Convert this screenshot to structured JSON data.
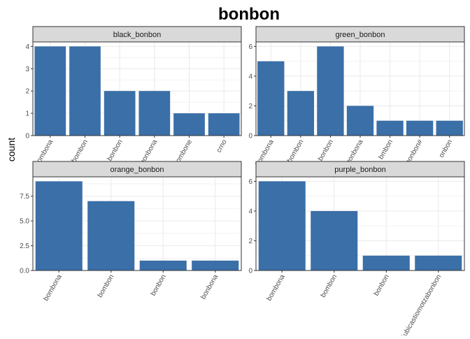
{
  "title": "bonbon",
  "ylabel": "count",
  "colors": {
    "bar": "#3A6FA8",
    "strip": "#D9D9D9",
    "grid": "#EBEBEB",
    "axis": "#333333"
  },
  "chart_data": [
    {
      "type": "bar",
      "title": "black_bonbon",
      "categories": [
        "bombona",
        "bombon",
        "bonbon",
        "bonbona",
        "bombone",
        "crno"
      ],
      "values": [
        4,
        4,
        2,
        2,
        1,
        1
      ],
      "ylim": [
        0,
        4.2
      ],
      "yticks": [
        0,
        1,
        2,
        3,
        4
      ],
      "ytick_labels": [
        "0",
        "1",
        "2",
        "3",
        "4"
      ],
      "grid": true
    },
    {
      "type": "bar",
      "title": "green_bonbon",
      "categories": [
        "bombona",
        "bombon",
        "bonbon",
        "bonbona",
        "bmbon",
        "bonbon#",
        "onbon"
      ],
      "values": [
        5,
        3,
        6,
        2,
        1,
        1,
        1
      ],
      "ylim": [
        0,
        6.3
      ],
      "yticks": [
        0,
        2,
        4,
        6
      ],
      "ytick_labels": [
        "0",
        "2",
        "4",
        "6"
      ],
      "grid": true
    },
    {
      "type": "bar",
      "title": "orange_bonbon",
      "categories": [
        "bombona",
        "bombon",
        "bonbon",
        "bonbona"
      ],
      "values": [
        9,
        7,
        1,
        1
      ],
      "ylim": [
        0,
        9.45
      ],
      "yticks": [
        0,
        2.5,
        5,
        7.5
      ],
      "ytick_labels": [
        "0.0",
        "2.5",
        "5.0",
        "7.5"
      ],
      "grid": true
    },
    {
      "type": "bar",
      "title": "purple_bonbon",
      "categories": [
        "bombona",
        "bombon",
        "bonbon",
        "ljubicastiomotzabonbon"
      ],
      "values": [
        6,
        4,
        1,
        1
      ],
      "ylim": [
        0,
        6.3
      ],
      "yticks": [
        0,
        2,
        4,
        6
      ],
      "ytick_labels": [
        "0",
        "2",
        "4",
        "6"
      ],
      "grid": true
    }
  ]
}
